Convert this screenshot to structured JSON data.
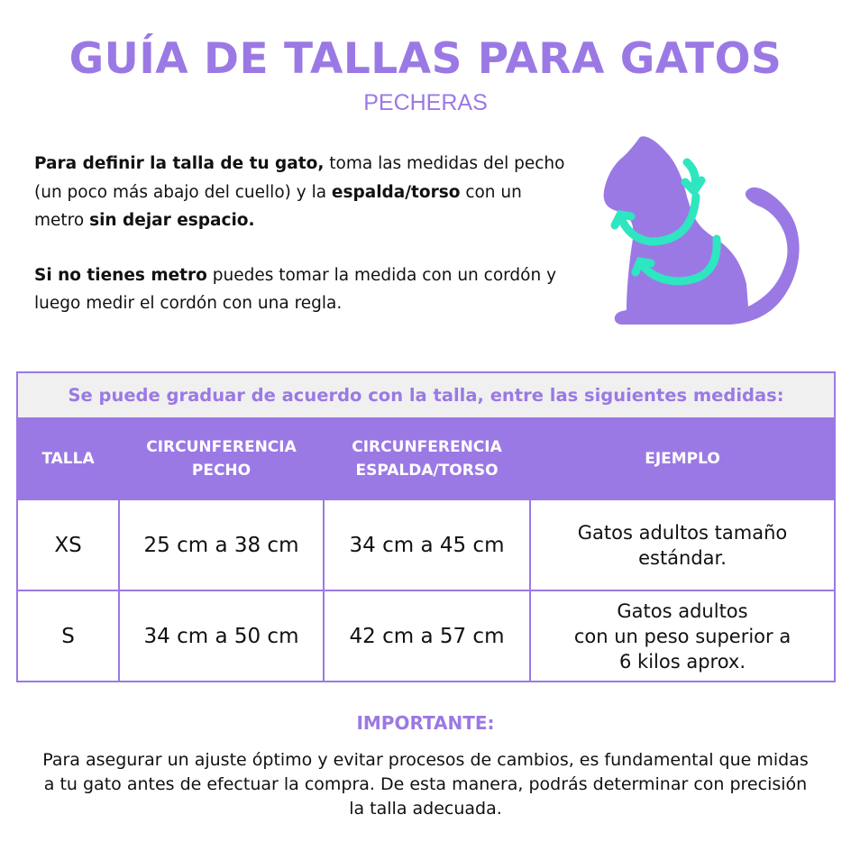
{
  "title": "GUÍA DE TALLAS PARA GATOS",
  "subtitle": "PECHERAS",
  "intro": {
    "p1": [
      {
        "text": "Para definir la talla de  tu gato,",
        "bold": true
      },
      {
        "text": " toma las medidas del pecho (un poco más abajo del cuello) y la ",
        "bold": false
      },
      {
        "text": "espalda/torso",
        "bold": true
      },
      {
        "text": " con un metro ",
        "bold": false
      },
      {
        "text": "sin dejar espacio.",
        "bold": true
      }
    ],
    "p2": [
      {
        "text": "Si no tienes metro",
        "bold": true
      },
      {
        "text": " puedes tomar la medida con un cordón y luego medir el cordón con una regla.",
        "bold": false
      }
    ]
  },
  "colors": {
    "accent": "#9b79e4",
    "arrows": "#2ee6c0",
    "band": "#f0f0f0"
  },
  "table": {
    "caption": "Se puede graduar de acuerdo con la talla, entre las siguientes medidas:",
    "headers": [
      "TALLA",
      "CIRCUNFERENCIA\nPECHO",
      "CIRCUNFERENCIA\nESPALDA/TORSO",
      "EJEMPLO"
    ],
    "rows": [
      {
        "size": "XS",
        "chest": "25 cm a 38 cm",
        "back": "34 cm a 45 cm",
        "example": "Gatos adultos tamaño\nestándar."
      },
      {
        "size": "S",
        "chest": "34 cm a 50 cm",
        "back": "42 cm a 57 cm",
        "example": "Gatos adultos\ncon un peso superior a\n6 kilos aprox."
      }
    ]
  },
  "important": {
    "heading": "IMPORTANTE:",
    "text": "Para asegurar un ajuste óptimo y evitar procesos de cambios, es fundamental que midas a tu gato antes de efectuar la compra. De esta manera, podrás determinar con precisión la talla adecuada."
  }
}
